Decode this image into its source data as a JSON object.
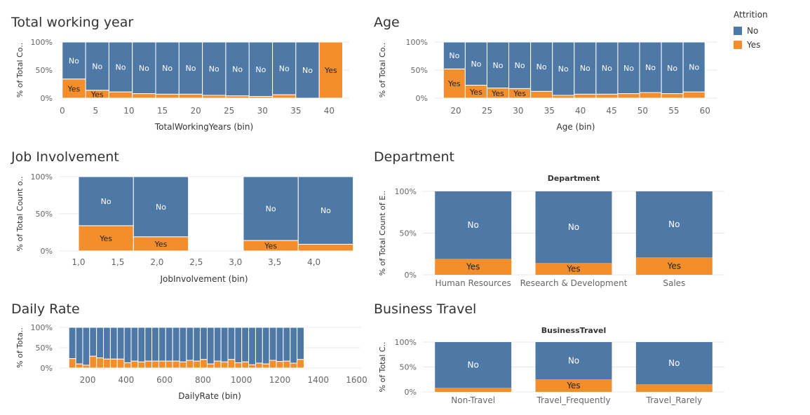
{
  "legend": {
    "title": "Attrition",
    "items": [
      {
        "label": "No",
        "color": "#4e79a7"
      },
      {
        "label": "Yes",
        "color": "#f28e2b"
      }
    ]
  },
  "colors": {
    "no": "#4e79a7",
    "yes": "#f28e2b"
  },
  "panels": [
    {
      "title": "Total working year"
    },
    {
      "title": "Age"
    },
    {
      "title": "Job Involvement"
    },
    {
      "title": "Department"
    },
    {
      "title": "Daily Rate"
    },
    {
      "title": "Business Travel"
    }
  ],
  "chart_data": [
    {
      "type": "bar",
      "stacked_percent": true,
      "xlabel": "TotalWorkingYears (bin)",
      "ylabel": "% of Total Co..",
      "yticks": [
        "100%",
        "50%",
        "0%"
      ],
      "xticks": [
        "0",
        "5",
        "10",
        "15",
        "20",
        "25",
        "30",
        "35",
        "40"
      ],
      "xlim": [
        -0.5,
        43
      ],
      "bin_width": 3.5,
      "x": [
        0,
        3.5,
        7,
        10.5,
        14,
        17.5,
        21,
        24.5,
        28,
        31.5,
        35,
        38.5
      ],
      "yes_pct": [
        34,
        14,
        11,
        8,
        7,
        7,
        5,
        4,
        3,
        6,
        0,
        100
      ],
      "series": [
        {
          "name": "No"
        },
        {
          "name": "Yes"
        }
      ]
    },
    {
      "type": "bar",
      "stacked_percent": true,
      "xlabel": "Age (bin)",
      "ylabel": "% of Total Co..",
      "yticks": [
        "100%",
        "50%",
        "0%"
      ],
      "xticks": [
        "20",
        "25",
        "30",
        "35",
        "40",
        "45",
        "50",
        "55",
        "60"
      ],
      "xlim": [
        16.5,
        62
      ],
      "bin_width": 3.5,
      "x": [
        18,
        21.5,
        25,
        28.5,
        32,
        35.5,
        39,
        42.5,
        46,
        49.5,
        53,
        56.5
      ],
      "yes_pct": [
        52,
        23,
        18,
        17,
        12,
        5,
        7,
        7,
        8,
        10,
        8,
        11
      ],
      "series": [
        {
          "name": "No"
        },
        {
          "name": "Yes"
        }
      ]
    },
    {
      "type": "bar",
      "stacked_percent": true,
      "xlabel": "JobInvolvement (bin)",
      "ylabel": "% of Total Count o..",
      "yticks": [
        "100%",
        "50%",
        "0%"
      ],
      "xticks": [
        "1,0",
        "1,5",
        "2,0",
        "2,5",
        "3,0",
        "3,5",
        "4,0"
      ],
      "xlim": [
        0.75,
        4.45
      ],
      "bin_width": 0.7,
      "x": [
        1.0,
        1.7,
        3.1,
        3.8
      ],
      "yes_pct": [
        34,
        19,
        14,
        9
      ],
      "series": [
        {
          "name": "No"
        },
        {
          "name": "Yes"
        }
      ]
    },
    {
      "type": "bar",
      "stacked_percent": true,
      "header": "Department",
      "xlabel": "",
      "ylabel": "% of Total Count of E..",
      "yticks": [
        "100%",
        "50%",
        "0%"
      ],
      "categories": [
        "Human Resources",
        "Research & Development",
        "Sales"
      ],
      "yes_pct": [
        19,
        14,
        21
      ],
      "series": [
        {
          "name": "No"
        },
        {
          "name": "Yes"
        }
      ]
    },
    {
      "type": "bar",
      "stacked_percent": true,
      "xlabel": "DailyRate (bin)",
      "ylabel": "% of Tota..",
      "yticks": [
        "100%",
        "50%",
        "0%"
      ],
      "xticks": [
        "200",
        "400",
        "600",
        "800",
        "1000",
        "1200",
        "1400",
        "1600"
      ],
      "xlim": [
        50,
        1620
      ],
      "bin_width": 36,
      "x0": 102,
      "yes_pct": [
        23,
        10,
        7,
        29,
        25,
        22,
        22,
        22,
        13,
        17,
        15,
        17,
        17,
        17,
        17,
        17,
        15,
        19,
        17,
        21,
        10,
        17,
        15,
        21,
        13,
        15,
        8,
        12,
        10,
        19,
        16,
        17,
        12,
        21
      ],
      "series": [
        {
          "name": "No"
        },
        {
          "name": "Yes"
        }
      ]
    },
    {
      "type": "bar",
      "stacked_percent": true,
      "header": "BusinessTravel",
      "xlabel": "",
      "ylabel": "% of Total C..",
      "yticks": [
        "100%",
        "50%",
        "0%"
      ],
      "categories": [
        "Non-Travel",
        "Travel_Frequently",
        "Travel_Rarely"
      ],
      "yes_pct": [
        8,
        25,
        15
      ],
      "series": [
        {
          "name": "No"
        },
        {
          "name": "Yes"
        }
      ]
    }
  ]
}
